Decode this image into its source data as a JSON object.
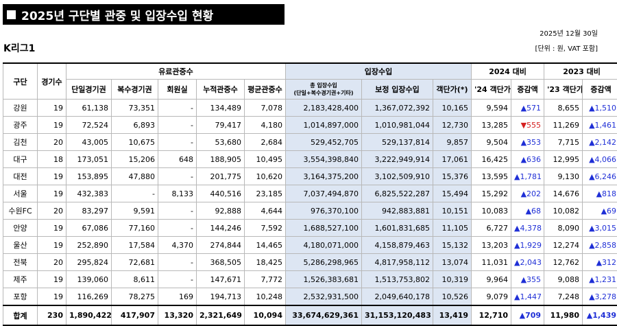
{
  "title": "2025년 구단별 관중 및 입장수입 현황",
  "league": "K리그1",
  "date": "2025년 12월 30일",
  "unit_note": "[단위 : 원, VAT 포함]",
  "headers": {
    "club": "구단",
    "games": "경기수",
    "paid_group": "유료관중수",
    "single": "단일경기권",
    "multi": "복수경기권",
    "member": "회원실",
    "cumulative": "누적관중수",
    "average": "평균관중수",
    "revenue_group": "입장수입",
    "total_rev_1": "총 입장수입",
    "total_rev_2": "(단일+복수경기권+기타)",
    "adj_rev": "보정 입장수입",
    "unit_price": "객단가(*)",
    "vs2024": "2024 대비",
    "price24": "'24 객단가",
    "diff24": "증감액",
    "vs2023": "2023 대비",
    "price23": "'23 객단가",
    "diff23": "증감액"
  },
  "rows": [
    {
      "club": "강원",
      "games": "19",
      "single": "61,138",
      "multi": "73,351",
      "member": "-",
      "cum": "134,489",
      "avg": "7,078",
      "total_rev": "2,183,428,400",
      "adj_rev": "1,367,072,392",
      "price": "10,165",
      "p24": "9,594",
      "d24": "▲571",
      "d24dir": "up",
      "p23": "8,655",
      "d23": "▲1,510",
      "d23dir": "up"
    },
    {
      "club": "광주",
      "games": "19",
      "single": "72,524",
      "multi": "6,893",
      "member": "-",
      "cum": "79,417",
      "avg": "4,180",
      "total_rev": "1,014,897,000",
      "adj_rev": "1,010,981,044",
      "price": "12,730",
      "p24": "13,285",
      "d24": "▼555",
      "d24dir": "down",
      "p23": "11,269",
      "d23": "▲1,461",
      "d23dir": "up"
    },
    {
      "club": "김천",
      "games": "20",
      "single": "43,005",
      "multi": "10,675",
      "member": "-",
      "cum": "53,680",
      "avg": "2,684",
      "total_rev": "529,452,705",
      "adj_rev": "529,137,814",
      "price": "9,857",
      "p24": "9,504",
      "d24": "▲353",
      "d24dir": "up",
      "p23": "7,715",
      "d23": "▲2,142",
      "d23dir": "up"
    },
    {
      "club": "대구",
      "games": "18",
      "single": "173,051",
      "multi": "15,206",
      "member": "648",
      "cum": "188,905",
      "avg": "10,495",
      "total_rev": "3,554,398,840",
      "adj_rev": "3,222,949,914",
      "price": "17,061",
      "p24": "16,425",
      "d24": "▲636",
      "d24dir": "up",
      "p23": "12,995",
      "d23": "▲4,066",
      "d23dir": "up"
    },
    {
      "club": "대전",
      "games": "19",
      "single": "153,895",
      "multi": "47,880",
      "member": "-",
      "cum": "201,775",
      "avg": "10,620",
      "total_rev": "3,164,375,200",
      "adj_rev": "3,102,509,910",
      "price": "15,376",
      "p24": "13,595",
      "d24": "▲1,781",
      "d24dir": "up",
      "p23": "9,130",
      "d23": "▲6,246",
      "d23dir": "up"
    },
    {
      "club": "서울",
      "games": "19",
      "single": "432,383",
      "multi": "-",
      "member": "8,133",
      "cum": "440,516",
      "avg": "23,185",
      "total_rev": "7,037,494,870",
      "adj_rev": "6,825,522,287",
      "price": "15,494",
      "p24": "15,292",
      "d24": "▲202",
      "d24dir": "up",
      "p23": "14,676",
      "d23": "▲818",
      "d23dir": "up"
    },
    {
      "club": "수원FC",
      "games": "20",
      "single": "83,297",
      "multi": "9,591",
      "member": "-",
      "cum": "92,888",
      "avg": "4,644",
      "total_rev": "976,370,100",
      "adj_rev": "942,883,881",
      "price": "10,151",
      "p24": "10,083",
      "d24": "▲68",
      "d24dir": "up",
      "p23": "10,082",
      "d23": "▲69",
      "d23dir": "up"
    },
    {
      "club": "안양",
      "games": "19",
      "single": "67,086",
      "multi": "77,160",
      "member": "-",
      "cum": "144,246",
      "avg": "7,592",
      "total_rev": "1,688,527,100",
      "adj_rev": "1,601,831,685",
      "price": "11,105",
      "p24": "6,727",
      "d24": "▲4,378",
      "d24dir": "up",
      "p23": "8,090",
      "d23": "▲3,015",
      "d23dir": "up"
    },
    {
      "club": "울산",
      "games": "19",
      "single": "252,890",
      "multi": "17,584",
      "member": "4,370",
      "cum": "274,844",
      "avg": "14,465",
      "total_rev": "4,180,071,000",
      "adj_rev": "4,158,879,463",
      "price": "15,132",
      "p24": "13,203",
      "d24": "▲1,929",
      "d24dir": "up",
      "p23": "12,274",
      "d23": "▲2,858",
      "d23dir": "up"
    },
    {
      "club": "전북",
      "games": "20",
      "single": "295,824",
      "multi": "72,681",
      "member": "-",
      "cum": "368,505",
      "avg": "18,425",
      "total_rev": "5,286,298,965",
      "adj_rev": "4,817,958,112",
      "price": "13,074",
      "p24": "11,031",
      "d24": "▲2,043",
      "d24dir": "up",
      "p23": "12,762",
      "d23": "▲312",
      "d23dir": "up"
    },
    {
      "club": "제주",
      "games": "19",
      "single": "139,060",
      "multi": "8,611",
      "member": "-",
      "cum": "147,671",
      "avg": "7,772",
      "total_rev": "1,526,383,681",
      "adj_rev": "1,513,753,802",
      "price": "10,319",
      "p24": "9,964",
      "d24": "▲355",
      "d24dir": "up",
      "p23": "9,088",
      "d23": "▲1,231",
      "d23dir": "up"
    },
    {
      "club": "포항",
      "games": "19",
      "single": "116,269",
      "multi": "78,275",
      "member": "169",
      "cum": "194,713",
      "avg": "10,248",
      "total_rev": "2,532,931,500",
      "adj_rev": "2,049,640,178",
      "price": "10,526",
      "p24": "9,079",
      "d24": "▲1,447",
      "d24dir": "up",
      "p23": "7,248",
      "d23": "▲3,278",
      "d23dir": "up"
    }
  ],
  "total": {
    "club": "합계",
    "games": "230",
    "single": "1,890,422",
    "multi": "417,907",
    "member": "13,320",
    "cum": "2,321,649",
    "avg": "10,094",
    "total_rev": "33,674,629,361",
    "adj_rev": "31,153,120,483",
    "price": "13,419",
    "p24": "12,710",
    "d24": "▲709",
    "d24dir": "up",
    "p23": "11,980",
    "d23": "▲1,439",
    "d23dir": "up"
  },
  "colors": {
    "up": "#1f2fd6",
    "down": "#d52020",
    "revenue_bg": "#dde6f3",
    "title_bg": "#000000"
  }
}
